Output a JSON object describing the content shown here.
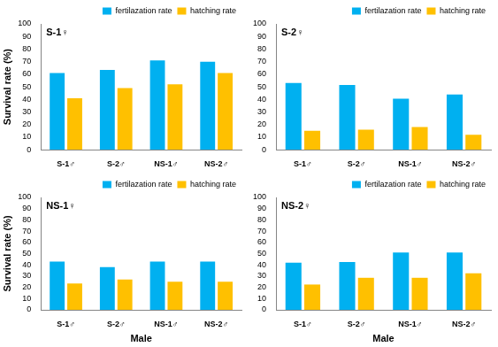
{
  "chart_data": [
    {
      "type": "bar",
      "title": "S-1♀",
      "categories": [
        "S-1♂",
        "S-2♂",
        "NS-1♂",
        "NS-2♂"
      ],
      "series": [
        {
          "name": "fertilazation rate",
          "color": "#00b0f0",
          "values": [
            61,
            63.5,
            71,
            70
          ]
        },
        {
          "name": "hatching rate",
          "color": "#ffc000",
          "values": [
            41,
            49,
            52,
            61
          ]
        }
      ],
      "y_label": "Survival rate (%)",
      "ylim": [
        0,
        100
      ],
      "yticks": [
        0,
        10,
        20,
        30,
        40,
        50,
        60,
        70,
        80,
        90,
        100
      ],
      "grid": false,
      "legend": "top"
    },
    {
      "type": "bar",
      "title": "S-2♀",
      "categories": [
        "S-1♂",
        "S-2♂",
        "NS-1♂",
        "NS-2♂"
      ],
      "series": [
        {
          "name": "fertilazation rate",
          "color": "#00b0f0",
          "values": [
            53,
            51.5,
            40.5,
            44
          ]
        },
        {
          "name": "hatching rate",
          "color": "#ffc000",
          "values": [
            15,
            16,
            18,
            12
          ]
        }
      ],
      "ylim": [
        0,
        100
      ],
      "yticks": [
        0,
        10,
        20,
        30,
        40,
        50,
        60,
        70,
        80,
        90,
        100
      ],
      "grid": false,
      "legend": "top"
    },
    {
      "type": "bar",
      "title": "NS-1♀",
      "categories": [
        "S-1♂",
        "S-2♂",
        "NS-1♂",
        "NS-2♂"
      ],
      "series": [
        {
          "name": "fertilazation rate",
          "color": "#00b0f0",
          "values": [
            43,
            38,
            43,
            43
          ]
        },
        {
          "name": "hatching rate",
          "color": "#ffc000",
          "values": [
            23.5,
            27,
            25,
            25
          ]
        }
      ],
      "x_label": "Male",
      "y_label": "Survival rate (%)",
      "ylim": [
        0,
        100
      ],
      "yticks": [
        0,
        10,
        20,
        30,
        40,
        50,
        60,
        70,
        80,
        90,
        100
      ],
      "grid": false,
      "legend": "top"
    },
    {
      "type": "bar",
      "title": "NS-2♀",
      "categories": [
        "S-1♂",
        "S-2♂",
        "NS-1♂",
        "NS-2♂"
      ],
      "series": [
        {
          "name": "fertilazation rate",
          "color": "#00b0f0",
          "values": [
            42,
            42.5,
            51,
            51
          ]
        },
        {
          "name": "hatching rate",
          "color": "#ffc000",
          "values": [
            22.5,
            28.5,
            28.5,
            32.5
          ]
        }
      ],
      "x_label": "Male",
      "ylim": [
        0,
        100
      ],
      "yticks": [
        0,
        10,
        20,
        30,
        40,
        50,
        60,
        70,
        80,
        90,
        100
      ],
      "grid": false,
      "legend": "top"
    }
  ]
}
